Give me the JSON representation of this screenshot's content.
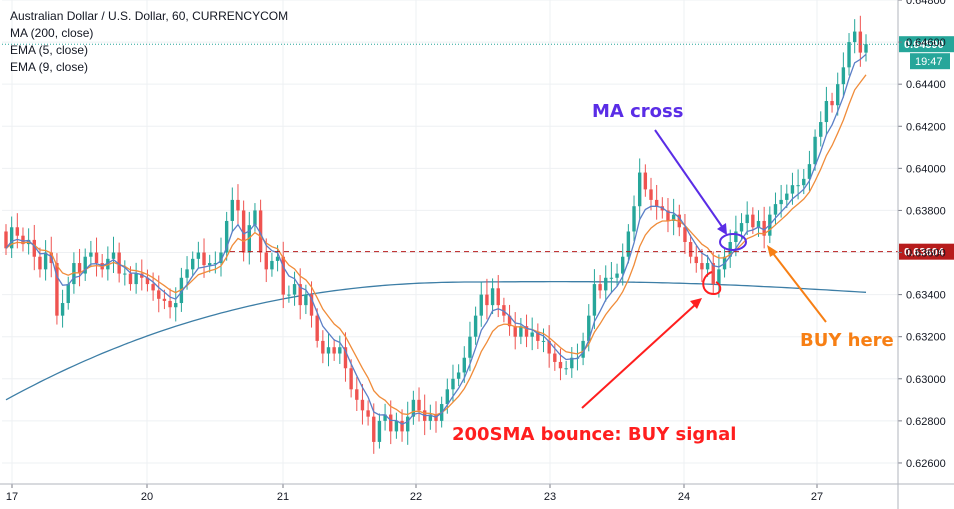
{
  "chart_data": {
    "type": "candlestick",
    "title": "Australian Dollar / U.S. Dollar, 60, CURRENCYCOM",
    "indicators": [
      "MA (200, close)",
      "EMA (5, close)",
      "EMA (9, close)"
    ],
    "ylim": [
      0.625,
      0.648
    ],
    "y_ticks": [
      "0.64800",
      "0.64600",
      "0.64400",
      "0.64200",
      "0.64000",
      "0.63800",
      "0.63600",
      "0.63400",
      "0.63200",
      "0.63000",
      "0.62800",
      "0.62600"
    ],
    "x_ticks": [
      "17",
      "20",
      "21",
      "22",
      "23",
      "24",
      "27"
    ],
    "grid": true,
    "colors": {
      "up": "#26a69a",
      "down": "#ef5350",
      "ma200": "#3d7ea6",
      "ema5": "#5b7fc7",
      "ema9": "#f08c3a",
      "annotation_red": "#ff1e1e",
      "annotation_blue": "#5a2de6",
      "annotation_orange": "#f77f14",
      "resistance": "#b22222"
    },
    "last_price": {
      "value": 0.6459,
      "label": "0.64590",
      "countdown": "19:47",
      "color": "#26a69a"
    },
    "support_level": {
      "value": 0.63604,
      "label": "0.63604",
      "color": "#b71c1c"
    },
    "path": [
      0.6362,
      0.6372,
      0.6368,
      0.6364,
      0.6366,
      0.6358,
      0.6352,
      0.636,
      0.6355,
      0.633,
      0.6336,
      0.6345,
      0.6355,
      0.635,
      0.6358,
      0.636,
      0.6355,
      0.6352,
      0.6357,
      0.636,
      0.635,
      0.635,
      0.6345,
      0.635,
      0.6348,
      0.6345,
      0.6342,
      0.6338,
      0.6337,
      0.6334,
      0.6336,
      0.6348,
      0.6352,
      0.6357,
      0.636,
      0.6354,
      0.6355,
      0.6355,
      0.636,
      0.6375,
      0.6385,
      0.638,
      0.636,
      0.6373,
      0.638,
      0.636,
      0.6352,
      0.6356,
      0.6358,
      0.634,
      0.634,
      0.6345,
      0.6335,
      0.634,
      0.633,
      0.6318,
      0.6312,
      0.6315,
      0.6312,
      0.6315,
      0.6305,
      0.6295,
      0.629,
      0.6285,
      0.6282,
      0.627,
      0.628,
      0.6283,
      0.6275,
      0.628,
      0.6275,
      0.6282,
      0.629,
      0.6285,
      0.628,
      0.6283,
      0.628,
      0.6288,
      0.6295,
      0.63,
      0.6303,
      0.631,
      0.632,
      0.633,
      0.634,
      0.6335,
      0.6343,
      0.6335,
      0.633,
      0.6325,
      0.632,
      0.6325,
      0.632,
      0.6322,
      0.6318,
      0.6318,
      0.6312,
      0.6308,
      0.6305,
      0.6305,
      0.631,
      0.631,
      0.6318,
      0.633,
      0.6345,
      0.6342,
      0.6348,
      0.6348,
      0.635,
      0.6358,
      0.637,
      0.6382,
      0.6398,
      0.639,
      0.6385,
      0.6382,
      0.638,
      0.6375,
      0.6378,
      0.6372,
      0.6365,
      0.6358,
      0.6355,
      0.6352,
      0.6355,
      0.6345,
      0.6352,
      0.6358,
      0.6365,
      0.637,
      0.6374,
      0.6378,
      0.6372,
      0.6375,
      0.6368,
      0.6378,
      0.6383,
      0.6385,
      0.6388,
      0.6392,
      0.6392,
      0.6395,
      0.6402,
      0.6415,
      0.6422,
      0.6432,
      0.643,
      0.644,
      0.6448,
      0.646,
      0.6465,
      0.6455,
      0.6459
    ],
    "ma200": {
      "from": 0.629,
      "peak": 0.6346,
      "to": 0.6341
    }
  },
  "annotations": {
    "ma_cross": "MA cross",
    "bounce": "200SMA bounce: BUY signal",
    "buy_here": "BUY here"
  }
}
